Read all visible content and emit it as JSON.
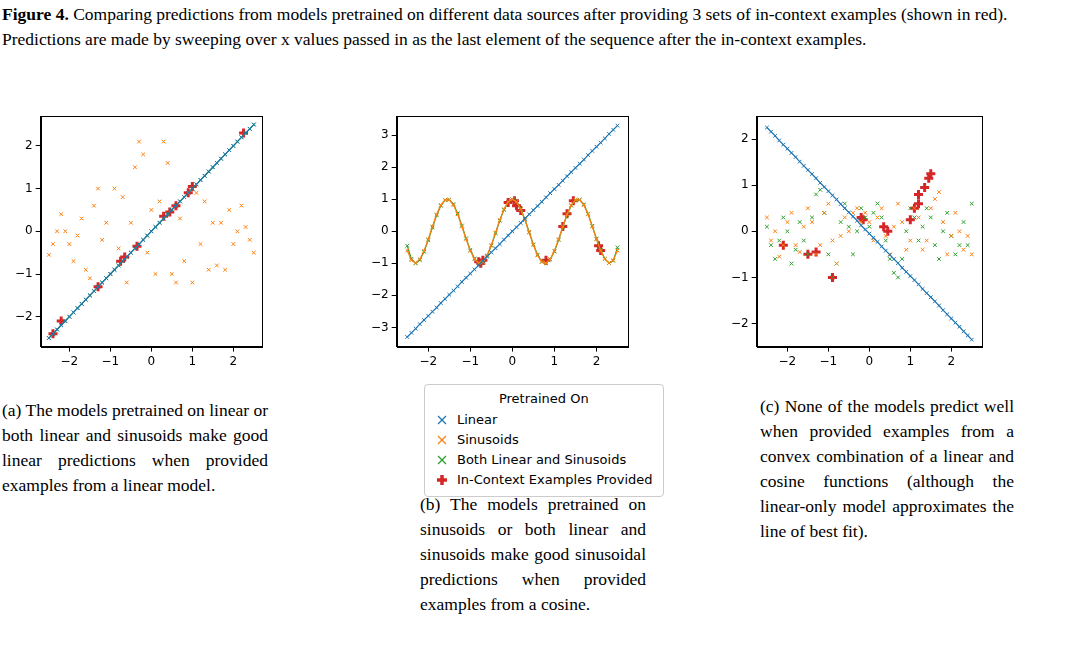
{
  "figure": {
    "label": "Figure 4.",
    "text": "Comparing predictions from models pretrained on different data sources after providing 3 sets of in-context examples (shown in red). Predictions are made by sweeping over x values passed in as the last element of the sequence after the in-context examples."
  },
  "chart_data": [
    {
      "type": "scatter",
      "caption": "(a) The models pretrained on linear or both linear and sinusoids make good linear predictions when provided examples from a linear model.",
      "xlim": [
        -2.7,
        2.7
      ],
      "ylim": [
        -2.7,
        2.7
      ],
      "xticks": [
        {
          "value": -2,
          "label": "−2"
        },
        {
          "value": -1,
          "label": "−1"
        },
        0,
        1,
        2
      ],
      "yticks": [
        {
          "value": -2,
          "label": "−2"
        },
        {
          "value": -1,
          "label": "−1"
        },
        0,
        1,
        2
      ],
      "grid": false,
      "x": [
        -2.5,
        -2.4,
        -2.3,
        -2.2,
        -2.1,
        -2.0,
        -1.9,
        -1.8,
        -1.7,
        -1.6,
        -1.5,
        -1.4,
        -1.3,
        -1.2,
        -1.1,
        -1.0,
        -0.9,
        -0.8,
        -0.7,
        -0.6,
        -0.5,
        -0.4,
        -0.3,
        -0.2,
        -0.1,
        0,
        0.1,
        0.2,
        0.3,
        0.4,
        0.5,
        0.6,
        0.7,
        0.8,
        0.9,
        1.0,
        1.1,
        1.2,
        1.3,
        1.4,
        1.5,
        1.6,
        1.7,
        1.8,
        1.9,
        2.0,
        2.1,
        2.2,
        2.3,
        2.4,
        2.5
      ],
      "series": [
        {
          "name": "Linear",
          "color": "#1f77b4",
          "marker": "x",
          "line_style": "solid",
          "values": [
            -2.5,
            -2.4,
            -2.3,
            -2.2,
            -2.1,
            -2.0,
            -1.9,
            -1.8,
            -1.7,
            -1.6,
            -1.5,
            -1.4,
            -1.3,
            -1.2,
            -1.1,
            -1.0,
            -0.9,
            -0.8,
            -0.7,
            -0.6,
            -0.5,
            -0.4,
            -0.3,
            -0.2,
            -0.1,
            0,
            0.1,
            0.2,
            0.3,
            0.4,
            0.5,
            0.6,
            0.7,
            0.8,
            0.9,
            1.0,
            1.1,
            1.2,
            1.3,
            1.4,
            1.5,
            1.6,
            1.7,
            1.8,
            1.9,
            2.0,
            2.1,
            2.2,
            2.3,
            2.4,
            2.5
          ]
        },
        {
          "name": "Sinusoids",
          "color": "#ff7f0e",
          "marker": "x",
          "values": [
            -0.55,
            -0.3,
            0.0,
            0.4,
            0.0,
            -0.3,
            -0.7,
            -0.1,
            0.3,
            -0.9,
            -1.1,
            0.6,
            1.0,
            -0.2,
            0.2,
            -1.0,
            1.0,
            -0.4,
            0.8,
            -1.2,
            0.2,
            1.5,
            2.1,
            1.8,
            -0.5,
            0.5,
            -1.0,
            0.7,
            2.1,
            1.6,
            -1.0,
            -1.2,
            0.3,
            -0.7,
            0.9,
            -1.2,
            0.9,
            -0.3,
            0.7,
            -0.9,
            0.2,
            -0.8,
            0.2,
            -0.9,
            0.5,
            -0.3,
            0.0,
            0.6,
            0.1,
            -0.2,
            -0.5
          ]
        },
        {
          "name": "Both Linear and Sinusoids",
          "color": "#2ca02c",
          "marker": "x",
          "line_style": "solid",
          "values": [
            -2.5,
            -2.4,
            -2.3,
            -2.2,
            -2.1,
            -2.0,
            -1.9,
            -1.8,
            -1.7,
            -1.6,
            -1.5,
            -1.4,
            -1.3,
            -1.2,
            -1.1,
            -1.0,
            -0.9,
            -0.8,
            -0.7,
            -0.6,
            -0.5,
            -0.4,
            -0.3,
            -0.2,
            -0.1,
            0,
            0.1,
            0.2,
            0.3,
            0.4,
            0.5,
            0.6,
            0.7,
            0.8,
            0.9,
            1.0,
            1.1,
            1.2,
            1.3,
            1.4,
            1.5,
            1.6,
            1.7,
            1.8,
            1.9,
            2.0,
            2.1,
            2.2,
            2.3,
            2.4,
            2.5
          ]
        },
        {
          "name": "In-Context Examples Provided",
          "color": "#d62728",
          "marker": "plus",
          "x": [
            -2.4,
            -2.2,
            -1.3,
            -0.75,
            -0.65,
            -0.35,
            0.3,
            0.45,
            0.6,
            0.9,
            1.0,
            2.25
          ],
          "values": [
            -2.4,
            -2.1,
            -1.3,
            -0.7,
            -0.6,
            -0.35,
            0.35,
            0.45,
            0.6,
            0.9,
            1.05,
            2.3
          ]
        }
      ]
    },
    {
      "type": "scatter",
      "caption": "(b) The models pretrained on sinusoids or both linear and sinusoids make good sinusoidal predictions when provided examples from a cosine.",
      "xlim": [
        -2.75,
        2.75
      ],
      "ylim": [
        -3.6,
        3.6
      ],
      "xticks": [
        {
          "value": -2,
          "label": "−2"
        },
        {
          "value": -1,
          "label": "−1"
        },
        0,
        1,
        2
      ],
      "yticks": [
        {
          "value": -3,
          "label": "−3"
        },
        {
          "value": -2,
          "label": "−2"
        },
        {
          "value": -1,
          "label": "−1"
        },
        0,
        1,
        2,
        3
      ],
      "grid": false,
      "legend": "bottom",
      "legend_title": "Pretrained On",
      "x": [
        -2.5,
        -2.4,
        -2.3,
        -2.2,
        -2.1,
        -2.0,
        -1.9,
        -1.8,
        -1.7,
        -1.6,
        -1.5,
        -1.4,
        -1.3,
        -1.2,
        -1.1,
        -1.0,
        -0.9,
        -0.8,
        -0.7,
        -0.6,
        -0.5,
        -0.4,
        -0.3,
        -0.2,
        -0.1,
        0,
        0.1,
        0.2,
        0.3,
        0.4,
        0.5,
        0.6,
        0.7,
        0.8,
        0.9,
        1.0,
        1.1,
        1.2,
        1.3,
        1.4,
        1.5,
        1.6,
        1.7,
        1.8,
        1.9,
        2.0,
        2.1,
        2.2,
        2.3,
        2.4,
        2.5
      ],
      "series": [
        {
          "name": "Linear",
          "color": "#1f77b4",
          "marker": "x",
          "line_style": "solid",
          "values": [
            -3.3,
            -3.17,
            -3.04,
            -2.9,
            -2.77,
            -2.64,
            -2.51,
            -2.38,
            -2.24,
            -2.11,
            -1.98,
            -1.85,
            -1.72,
            -1.58,
            -1.45,
            -1.32,
            -1.19,
            -1.06,
            -0.92,
            -0.79,
            -0.66,
            -0.53,
            -0.4,
            -0.26,
            -0.13,
            0,
            0.13,
            0.26,
            0.4,
            0.53,
            0.66,
            0.79,
            0.92,
            1.06,
            1.19,
            1.32,
            1.45,
            1.58,
            1.72,
            1.85,
            1.98,
            2.11,
            2.24,
            2.38,
            2.51,
            2.64,
            2.77,
            2.9,
            3.04,
            3.17,
            3.3
          ]
        },
        {
          "name": "Sinusoids",
          "color": "#ff7f0e",
          "marker": "x",
          "line_style": "solid",
          "values": [
            -0.6,
            -0.9,
            -0.99,
            -0.87,
            -0.61,
            -0.25,
            0.15,
            0.53,
            0.82,
            0.98,
            0.98,
            0.82,
            0.53,
            0.15,
            -0.25,
            -0.61,
            -0.87,
            -0.99,
            -0.96,
            -0.75,
            -0.43,
            -0.04,
            0.35,
            0.69,
            0.92,
            1,
            0.92,
            0.69,
            0.35,
            -0.04,
            -0.43,
            -0.75,
            -0.96,
            -0.99,
            -0.87,
            -0.61,
            -0.25,
            0.15,
            0.53,
            0.82,
            0.98,
            0.98,
            0.82,
            0.53,
            0.15,
            -0.25,
            -0.61,
            -0.87,
            -0.99,
            -0.9,
            -0.6
          ]
        },
        {
          "name": "Both Linear and Sinusoids",
          "color": "#2ca02c",
          "marker": "x",
          "line_style": "solid",
          "values": [
            -0.45,
            -0.86,
            -1.0,
            -0.9,
            -0.64,
            -0.28,
            0.12,
            0.5,
            0.8,
            0.97,
            0.99,
            0.85,
            0.56,
            0.18,
            -0.22,
            -0.58,
            -0.85,
            -0.99,
            -0.97,
            -0.77,
            -0.45,
            -0.06,
            0.33,
            0.67,
            0.91,
            1,
            0.93,
            0.7,
            0.37,
            -0.02,
            -0.41,
            -0.73,
            -0.95,
            -1.0,
            -0.88,
            -0.63,
            -0.27,
            0.13,
            0.51,
            0.8,
            0.97,
            0.99,
            0.84,
            0.55,
            0.17,
            -0.23,
            -0.59,
            -0.86,
            -0.99,
            -0.92,
            -0.5
          ]
        },
        {
          "name": "In-Context Examples Provided",
          "color": "#d62728",
          "marker": "plus",
          "x": [
            -0.8,
            -0.75,
            -0.7,
            -0.1,
            0.05,
            0.1,
            0.2,
            0.8,
            1.2,
            1.3,
            1.45,
            2.05,
            2.1
          ],
          "values": [
            -0.95,
            -1.0,
            -0.9,
            0.9,
            0.95,
            0.8,
            0.65,
            -0.9,
            0.15,
            0.55,
            0.95,
            -0.45,
            -0.6
          ]
        }
      ]
    },
    {
      "type": "scatter",
      "caption": "(c) None of the models predict well when provided examples from a convex combination of a linear and cosine functions (although the linear-only model approximates the line of best fit).",
      "xlim": [
        -2.75,
        2.75
      ],
      "ylim": [
        -2.5,
        2.5
      ],
      "xticks": [
        {
          "value": -2,
          "label": "−2"
        },
        {
          "value": -1,
          "label": "−1"
        },
        0,
        1,
        2
      ],
      "yticks": [
        {
          "value": -2,
          "label": "−2"
        },
        {
          "value": -1,
          "label": "−1"
        },
        0,
        1,
        2
      ],
      "grid": false,
      "x": [
        -2.5,
        -2.4,
        -2.3,
        -2.2,
        -2.1,
        -2.0,
        -1.9,
        -1.8,
        -1.7,
        -1.6,
        -1.5,
        -1.4,
        -1.3,
        -1.2,
        -1.1,
        -1.0,
        -0.9,
        -0.8,
        -0.7,
        -0.6,
        -0.5,
        -0.4,
        -0.3,
        -0.2,
        -0.1,
        0,
        0.1,
        0.2,
        0.3,
        0.4,
        0.5,
        0.6,
        0.7,
        0.8,
        0.9,
        1.0,
        1.1,
        1.2,
        1.3,
        1.4,
        1.5,
        1.6,
        1.7,
        1.8,
        1.9,
        2.0,
        2.1,
        2.2,
        2.3,
        2.4,
        2.5
      ],
      "series": [
        {
          "name": "Linear",
          "color": "#1f77b4",
          "marker": "x",
          "line_style": "solid",
          "values": [
            2.25,
            2.16,
            2.07,
            1.97,
            1.88,
            1.79,
            1.7,
            1.61,
            1.51,
            1.42,
            1.33,
            1.24,
            1.15,
            1.05,
            0.96,
            0.87,
            0.78,
            0.69,
            0.59,
            0.5,
            0.41,
            0.32,
            0.23,
            0.13,
            0.04,
            -0.05,
            -0.14,
            -0.23,
            -0.33,
            -0.42,
            -0.51,
            -0.6,
            -0.69,
            -0.79,
            -0.88,
            -0.97,
            -1.06,
            -1.15,
            -1.25,
            -1.34,
            -1.43,
            -1.52,
            -1.61,
            -1.71,
            -1.8,
            -1.89,
            -1.98,
            -2.07,
            -2.17,
            -2.26,
            -2.35
          ]
        },
        {
          "name": "Sinusoids",
          "color": "#ff7f0e",
          "marker": "x",
          "values": [
            0.3,
            -0.2,
            0.0,
            -0.55,
            -0.3,
            0.2,
            0.4,
            -0.3,
            -0.45,
            0.1,
            0.5,
            0.2,
            -0.5,
            -0.3,
            0.4,
            0.6,
            -0.2,
            -0.7,
            -0.1,
            0.3,
            0.0,
            0.4,
            0.5,
            0.2,
            0.4,
            0.2,
            -0.2,
            0.3,
            0.5,
            -0.1,
            -0.5,
            0.1,
            0.6,
            0.2,
            -0.4,
            -0.2,
            0.5,
            0.3,
            -0.4,
            -0.2,
            0.5,
            0.7,
            0.85,
            0.2,
            -0.5,
            -0.1,
            0.4,
            0.0,
            -0.4,
            -0.1,
            -0.5
          ]
        },
        {
          "name": "Both Linear and Sinusoids",
          "color": "#2ca02c",
          "marker": "x",
          "values": [
            0.1,
            -0.3,
            -0.6,
            -0.2,
            0.3,
            0.0,
            -0.7,
            -0.4,
            0.2,
            -0.2,
            -0.5,
            0.3,
            0.8,
            0.9,
            0.4,
            -0.5,
            -1.0,
            -0.7,
            0.2,
            0.6,
            0.1,
            -0.5,
            0.0,
            0.5,
            0.3,
            0.1,
            0.4,
            0.6,
            0.3,
            -0.2,
            -0.6,
            -0.9,
            -1.0,
            -0.6,
            0.0,
            0.5,
            0.3,
            -0.2,
            0.1,
            0.5,
            0.3,
            -0.3,
            -0.6,
            0.0,
            0.4,
            -0.1,
            -0.5,
            -0.3,
            0.2,
            -0.3,
            0.6
          ]
        },
        {
          "name": "In-Context Examples Provided",
          "color": "#d62728",
          "marker": "plus",
          "x": [
            -2.1,
            -1.5,
            -1.3,
            -0.9,
            -0.2,
            -0.15,
            0.35,
            0.45,
            1.0,
            1.1,
            1.2,
            1.2,
            1.35,
            1.45,
            1.5
          ],
          "values": [
            -0.3,
            -0.5,
            -0.45,
            -1.0,
            0.3,
            0.25,
            0.1,
            0.0,
            0.25,
            0.5,
            0.6,
            0.8,
            0.95,
            1.15,
            1.25
          ]
        }
      ]
    }
  ]
}
